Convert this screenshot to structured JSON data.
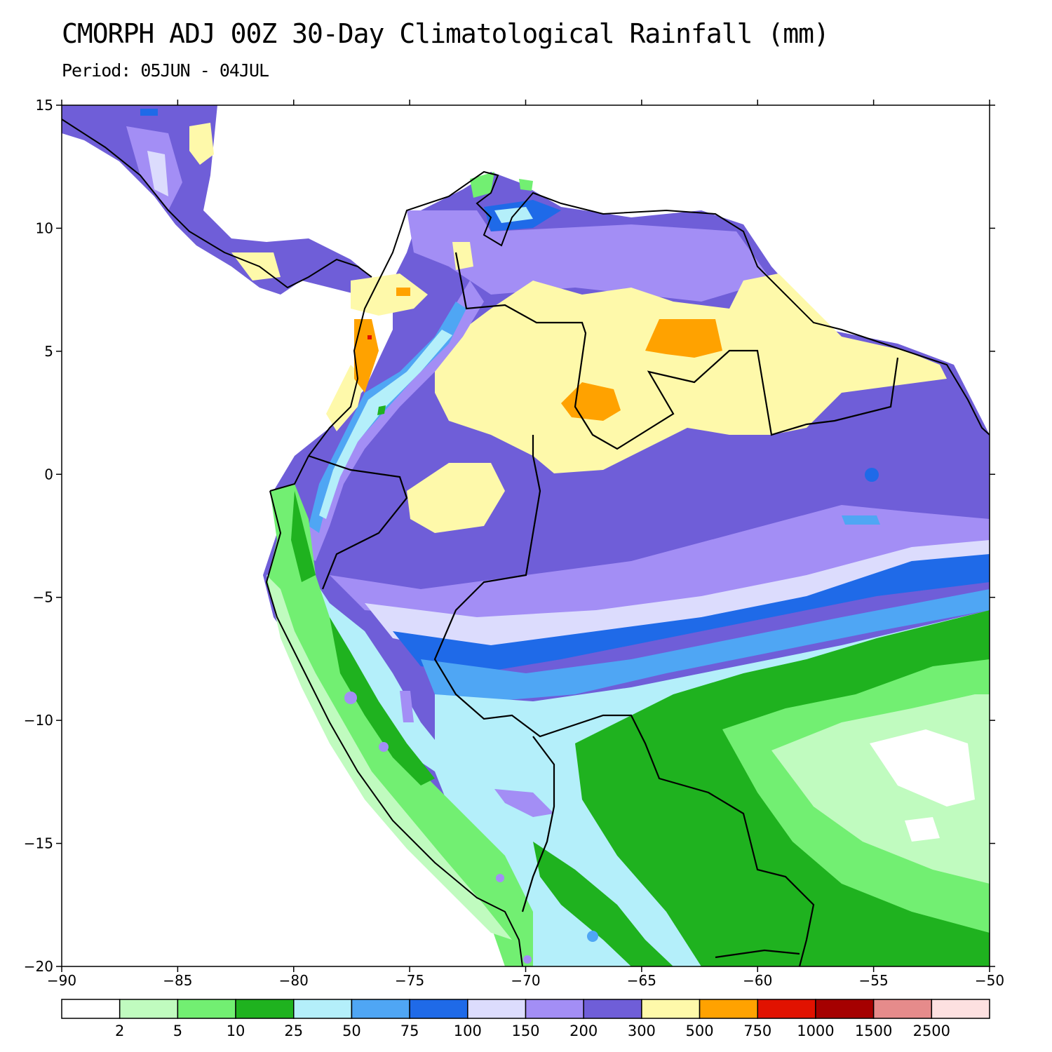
{
  "header": {
    "title": "CMORPH ADJ 00Z 30-Day Climatological Rainfall (mm)",
    "subtitle": "Period: 05JUN - 04JUL"
  },
  "map": {
    "lon_range": [
      -90,
      -50
    ],
    "lat_range": [
      -20,
      15
    ],
    "lon_ticks": [
      -90,
      -85,
      -80,
      -75,
      -70,
      -65,
      -60,
      -55,
      -50
    ],
    "lat_ticks": [
      15,
      10,
      5,
      0,
      -5,
      -10,
      -15,
      -20
    ],
    "lon_tick_labels": [
      "−90",
      "−85",
      "−80",
      "−75",
      "−70",
      "−65",
      "−60",
      "−55",
      "−50"
    ],
    "lat_tick_labels": [
      "15",
      "10",
      "5",
      "0",
      "−5",
      "−10",
      "−15",
      "−20"
    ]
  },
  "colorbar": {
    "colors": [
      "#ffffff",
      "#c0fbbf",
      "#72ef72",
      "#1fb21f",
      "#b4effa",
      "#4fa6f4",
      "#1f6ae8",
      "#dcdcfd",
      "#a38ef5",
      "#6f5ed8",
      "#fef9aa",
      "#ffa200",
      "#e11200",
      "#a50000",
      "#e68b8b",
      "#fde0e0"
    ],
    "labels": [
      "2",
      "5",
      "10",
      "25",
      "50",
      "75",
      "100",
      "150",
      "200",
      "300",
      "500",
      "750",
      "1000",
      "1500",
      "2500"
    ]
  }
}
